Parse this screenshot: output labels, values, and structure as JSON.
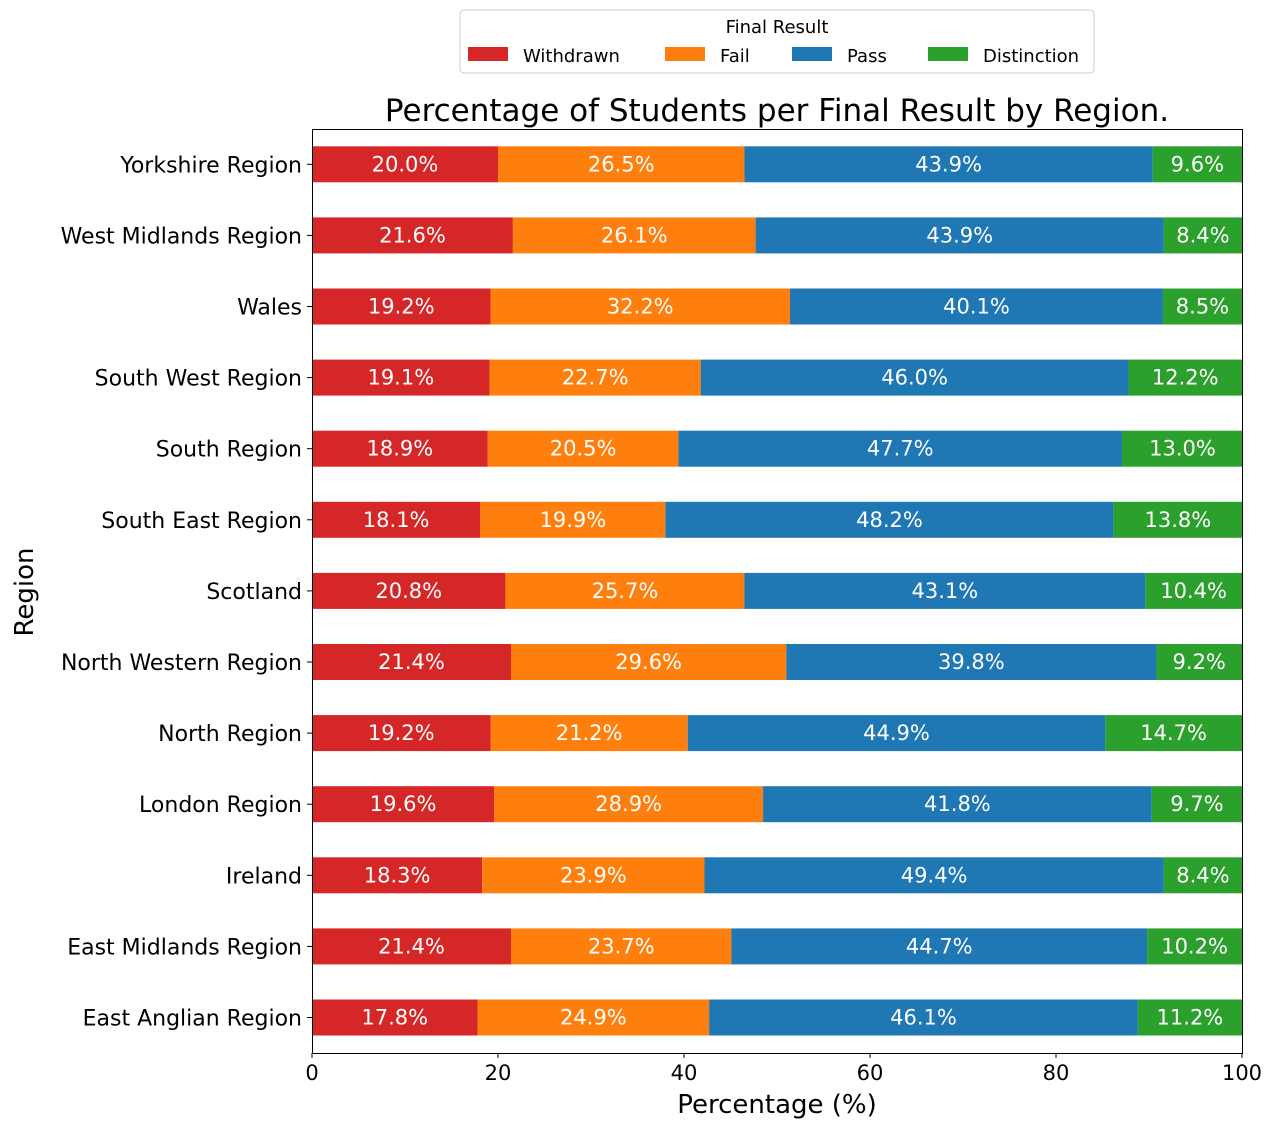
{
  "chart_data": {
    "type": "bar",
    "orientation": "horizontal",
    "stacked": true,
    "title": "Percentage of Students per Final Result by Region.",
    "xlabel": "Percentage (%)",
    "ylabel": "Region",
    "xlim": [
      0,
      100
    ],
    "xticks": [
      0,
      20,
      40,
      60,
      80,
      100
    ],
    "grid": false,
    "legend": {
      "title": "Final Result",
      "placement": "top-center",
      "columns": 4
    },
    "categories": [
      "East Anglian Region",
      "East Midlands Region",
      "Ireland",
      "London Region",
      "North Region",
      "North Western Region",
      "Scotland",
      "South East Region",
      "South Region",
      "South West Region",
      "Wales",
      "West Midlands Region",
      "Yorkshire Region"
    ],
    "series": [
      {
        "name": "Withdrawn",
        "color": "#d62728",
        "values": [
          17.8,
          21.4,
          18.3,
          19.6,
          19.2,
          21.4,
          20.8,
          18.1,
          18.9,
          19.1,
          19.2,
          21.6,
          20.0
        ]
      },
      {
        "name": "Fail",
        "color": "#ff7f0e",
        "values": [
          24.9,
          23.7,
          23.9,
          28.9,
          21.2,
          29.6,
          25.7,
          19.9,
          20.5,
          22.7,
          32.2,
          26.1,
          26.5
        ]
      },
      {
        "name": "Pass",
        "color": "#1f77b4",
        "values": [
          46.1,
          44.7,
          49.4,
          41.8,
          44.9,
          39.8,
          43.1,
          48.2,
          47.7,
          46.0,
          40.1,
          43.9,
          43.9
        ]
      },
      {
        "name": "Distinction",
        "color": "#2ca02c",
        "values": [
          11.2,
          10.2,
          8.4,
          9.7,
          14.7,
          9.2,
          10.4,
          13.8,
          13.0,
          12.2,
          8.5,
          8.4,
          9.6
        ]
      }
    ],
    "label_format": "percent_one_decimal"
  }
}
